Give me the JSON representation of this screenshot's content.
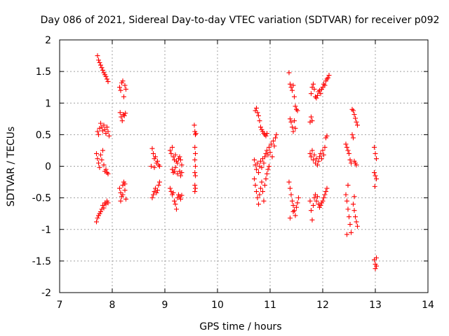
{
  "chart_data": {
    "type": "scatter",
    "title": "Day 086 of 2021, Sidereal Day-to-day VTEC variation (SDTVAR) for receiver p092",
    "xlabel": "GPS time / hours",
    "ylabel": "SDTVAR / TECUs",
    "xlim": [
      7,
      14
    ],
    "ylim": [
      -2,
      2
    ],
    "xticks": [
      "7",
      "8",
      "9",
      "10",
      "11",
      "12",
      "13",
      "14"
    ],
    "yticks": [
      "-2",
      "-1.5",
      "-1",
      "-0.5",
      "0",
      "0.5",
      "1",
      "1.5",
      "2"
    ],
    "grid": true,
    "marker": "+",
    "color": "#ff0000",
    "series": [
      {
        "name": "SDTVAR",
        "points": [
          [
            7.72,
            1.75
          ],
          [
            7.74,
            1.68
          ],
          [
            7.76,
            1.64
          ],
          [
            7.78,
            1.6
          ],
          [
            7.8,
            1.56
          ],
          [
            7.82,
            1.52
          ],
          [
            7.84,
            1.48
          ],
          [
            7.86,
            1.45
          ],
          [
            7.88,
            1.42
          ],
          [
            7.9,
            1.38
          ],
          [
            7.92,
            1.34
          ],
          [
            7.72,
            0.55
          ],
          [
            7.74,
            0.5
          ],
          [
            7.76,
            0.6
          ],
          [
            7.78,
            0.68
          ],
          [
            7.8,
            0.62
          ],
          [
            7.82,
            0.56
          ],
          [
            7.84,
            0.65
          ],
          [
            7.86,
            0.58
          ],
          [
            7.88,
            0.52
          ],
          [
            7.9,
            0.62
          ],
          [
            7.92,
            0.55
          ],
          [
            7.94,
            0.48
          ],
          [
            7.7,
            0.2
          ],
          [
            7.72,
            0.12
          ],
          [
            7.74,
            0.05
          ],
          [
            7.76,
            -0.02
          ],
          [
            7.78,
            0.18
          ],
          [
            7.8,
            0.1
          ],
          [
            7.82,
            0.25
          ],
          [
            7.84,
            0.02
          ],
          [
            7.86,
            -0.08
          ],
          [
            7.88,
            -0.05
          ],
          [
            7.9,
            -0.1
          ],
          [
            7.92,
            -0.12
          ],
          [
            7.7,
            -0.88
          ],
          [
            7.72,
            -0.82
          ],
          [
            7.74,
            -0.78
          ],
          [
            7.76,
            -0.75
          ],
          [
            7.78,
            -0.72
          ],
          [
            7.8,
            -0.68
          ],
          [
            7.82,
            -0.62
          ],
          [
            7.84,
            -0.66
          ],
          [
            7.86,
            -0.58
          ],
          [
            7.88,
            -0.6
          ],
          [
            7.9,
            -0.55
          ],
          [
            7.92,
            -0.58
          ],
          [
            8.14,
            1.25
          ],
          [
            8.16,
            1.2
          ],
          [
            8.18,
            1.32
          ],
          [
            8.2,
            1.35
          ],
          [
            8.22,
            1.1
          ],
          [
            8.24,
            1.28
          ],
          [
            8.26,
            1.22
          ],
          [
            8.15,
            0.85
          ],
          [
            8.17,
            0.78
          ],
          [
            8.19,
            0.72
          ],
          [
            8.21,
            0.82
          ],
          [
            8.23,
            0.8
          ],
          [
            8.25,
            0.84
          ],
          [
            8.14,
            -0.35
          ],
          [
            8.16,
            -0.42
          ],
          [
            8.18,
            -0.48
          ],
          [
            8.2,
            -0.3
          ],
          [
            8.22,
            -0.25
          ],
          [
            8.24,
            -0.38
          ],
          [
            8.26,
            -0.52
          ],
          [
            8.16,
            -0.55
          ],
          [
            8.2,
            -0.45
          ],
          [
            8.24,
            -0.28
          ],
          [
            8.76,
            0.28
          ],
          [
            8.78,
            0.2
          ],
          [
            8.8,
            0.12
          ],
          [
            8.82,
            0.15
          ],
          [
            8.84,
            0.05
          ],
          [
            8.86,
            0.08
          ],
          [
            8.88,
            0.02
          ],
          [
            8.9,
            0.0
          ],
          [
            8.74,
            0.0
          ],
          [
            8.8,
            -0.02
          ],
          [
            8.76,
            -0.5
          ],
          [
            8.78,
            -0.45
          ],
          [
            8.8,
            -0.4
          ],
          [
            8.82,
            -0.35
          ],
          [
            8.84,
            -0.42
          ],
          [
            8.86,
            -0.38
          ],
          [
            8.88,
            -0.3
          ],
          [
            8.9,
            -0.25
          ],
          [
            9.1,
            0.25
          ],
          [
            9.12,
            0.2
          ],
          [
            9.14,
            0.3
          ],
          [
            9.16,
            0.15
          ],
          [
            9.18,
            0.1
          ],
          [
            9.2,
            0.18
          ],
          [
            9.22,
            0.08
          ],
          [
            9.24,
            0.05
          ],
          [
            9.26,
            0.12
          ],
          [
            9.28,
            0.15
          ],
          [
            9.3,
            0.1
          ],
          [
            9.32,
            0.02
          ],
          [
            9.14,
            -0.05
          ],
          [
            9.16,
            -0.1
          ],
          [
            9.18,
            -0.08
          ],
          [
            9.2,
            -0.02
          ],
          [
            9.24,
            -0.12
          ],
          [
            9.28,
            -0.08
          ],
          [
            9.3,
            -0.15
          ],
          [
            9.32,
            -0.1
          ],
          [
            9.1,
            -0.35
          ],
          [
            9.12,
            -0.4
          ],
          [
            9.14,
            -0.45
          ],
          [
            9.16,
            -0.42
          ],
          [
            9.18,
            -0.55
          ],
          [
            9.2,
            -0.6
          ],
          [
            9.22,
            -0.68
          ],
          [
            9.24,
            -0.5
          ],
          [
            9.26,
            -0.45
          ],
          [
            9.28,
            -0.48
          ],
          [
            9.3,
            -0.52
          ],
          [
            9.32,
            -0.46
          ],
          [
            9.56,
            0.65
          ],
          [
            9.57,
            0.55
          ],
          [
            9.58,
            0.5
          ],
          [
            9.59,
            0.52
          ],
          [
            9.57,
            0.3
          ],
          [
            9.58,
            0.2
          ],
          [
            9.57,
            0.1
          ],
          [
            9.58,
            0.0
          ],
          [
            9.57,
            -0.1
          ],
          [
            9.58,
            -0.15
          ],
          [
            9.57,
            -0.3
          ],
          [
            9.58,
            -0.35
          ],
          [
            9.57,
            -0.4
          ],
          [
            10.72,
            0.88
          ],
          [
            10.74,
            0.92
          ],
          [
            10.76,
            0.85
          ],
          [
            10.78,
            0.8
          ],
          [
            10.8,
            0.72
          ],
          [
            10.82,
            0.62
          ],
          [
            10.84,
            0.58
          ],
          [
            10.86,
            0.55
          ],
          [
            10.88,
            0.52
          ],
          [
            10.9,
            0.5
          ],
          [
            10.92,
            0.48
          ],
          [
            10.94,
            0.52
          ],
          [
            10.7,
            0.1
          ],
          [
            10.72,
            0.02
          ],
          [
            10.74,
            -0.05
          ],
          [
            10.76,
            0.05
          ],
          [
            10.78,
            -0.1
          ],
          [
            10.8,
            0.0
          ],
          [
            10.82,
            0.08
          ],
          [
            10.84,
            -0.02
          ],
          [
            10.86,
            0.12
          ],
          [
            10.88,
            0.05
          ],
          [
            10.9,
            0.15
          ],
          [
            10.92,
            0.2
          ],
          [
            10.94,
            0.25
          ],
          [
            10.96,
            0.18
          ],
          [
            10.98,
            0.3
          ],
          [
            11.0,
            0.22
          ],
          [
            11.02,
            0.35
          ],
          [
            11.04,
            0.15
          ],
          [
            11.06,
            0.4
          ],
          [
            11.08,
            0.32
          ],
          [
            11.1,
            0.45
          ],
          [
            11.12,
            0.5
          ],
          [
            10.7,
            -0.2
          ],
          [
            10.72,
            -0.3
          ],
          [
            10.74,
            -0.4
          ],
          [
            10.76,
            -0.5
          ],
          [
            10.78,
            -0.6
          ],
          [
            10.8,
            -0.45
          ],
          [
            10.82,
            -0.35
          ],
          [
            10.84,
            -0.25
          ],
          [
            10.86,
            -0.4
          ],
          [
            10.88,
            -0.55
          ],
          [
            10.9,
            -0.3
          ],
          [
            10.92,
            -0.2
          ],
          [
            10.94,
            -0.12
          ],
          [
            10.96,
            -0.05
          ],
          [
            10.98,
            0.0
          ],
          [
            11.36,
            1.48
          ],
          [
            11.38,
            1.3
          ],
          [
            11.4,
            1.25
          ],
          [
            11.42,
            1.2
          ],
          [
            11.44,
            1.28
          ],
          [
            11.46,
            1.1
          ],
          [
            11.48,
            0.95
          ],
          [
            11.5,
            0.9
          ],
          [
            11.52,
            0.88
          ],
          [
            11.38,
            0.75
          ],
          [
            11.4,
            0.7
          ],
          [
            11.42,
            0.62
          ],
          [
            11.44,
            0.55
          ],
          [
            11.46,
            0.72
          ],
          [
            11.48,
            0.6
          ],
          [
            11.36,
            -0.25
          ],
          [
            11.38,
            -0.35
          ],
          [
            11.4,
            -0.45
          ],
          [
            11.42,
            -0.55
          ],
          [
            11.44,
            -0.62
          ],
          [
            11.46,
            -0.7
          ],
          [
            11.48,
            -0.78
          ],
          [
            11.5,
            -0.65
          ],
          [
            11.52,
            -0.58
          ],
          [
            11.54,
            -0.5
          ],
          [
            11.38,
            -0.82
          ],
          [
            11.44,
            -0.72
          ],
          [
            11.78,
            1.15
          ],
          [
            11.8,
            1.25
          ],
          [
            11.82,
            1.3
          ],
          [
            11.84,
            1.22
          ],
          [
            11.86,
            1.1
          ],
          [
            11.88,
            1.08
          ],
          [
            11.9,
            1.12
          ],
          [
            11.92,
            1.18
          ],
          [
            11.94,
            1.2
          ],
          [
            11.96,
            1.15
          ],
          [
            11.98,
            1.22
          ],
          [
            12.0,
            1.25
          ],
          [
            12.02,
            1.3
          ],
          [
            12.04,
            1.28
          ],
          [
            12.06,
            1.35
          ],
          [
            12.08,
            1.38
          ],
          [
            12.1,
            1.4
          ],
          [
            12.12,
            1.44
          ],
          [
            11.76,
            0.7
          ],
          [
            11.78,
            0.78
          ],
          [
            11.8,
            0.72
          ],
          [
            11.76,
            0.2
          ],
          [
            11.78,
            0.15
          ],
          [
            11.8,
            0.25
          ],
          [
            11.82,
            0.1
          ],
          [
            11.84,
            0.18
          ],
          [
            11.86,
            0.05
          ],
          [
            11.88,
            0.12
          ],
          [
            11.9,
            0.02
          ],
          [
            11.92,
            0.08
          ],
          [
            11.94,
            0.15
          ],
          [
            11.96,
            0.2
          ],
          [
            11.98,
            0.12
          ],
          [
            12.0,
            0.25
          ],
          [
            12.02,
            0.18
          ],
          [
            12.04,
            0.3
          ],
          [
            12.06,
            0.45
          ],
          [
            12.08,
            0.48
          ],
          [
            11.76,
            -0.55
          ],
          [
            11.78,
            -0.7
          ],
          [
            11.8,
            -0.85
          ],
          [
            11.82,
            -0.62
          ],
          [
            11.84,
            -0.5
          ],
          [
            11.86,
            -0.45
          ],
          [
            11.88,
            -0.55
          ],
          [
            11.9,
            -0.48
          ],
          [
            11.92,
            -0.6
          ],
          [
            11.94,
            -0.65
          ],
          [
            11.96,
            -0.62
          ],
          [
            11.98,
            -0.58
          ],
          [
            12.0,
            -0.55
          ],
          [
            12.02,
            -0.5
          ],
          [
            12.04,
            -0.45
          ],
          [
            12.06,
            -0.4
          ],
          [
            12.08,
            -0.35
          ],
          [
            12.44,
            0.35
          ],
          [
            12.46,
            0.3
          ],
          [
            12.48,
            0.25
          ],
          [
            12.5,
            0.2
          ],
          [
            12.52,
            0.1
          ],
          [
            12.54,
            0.05
          ],
          [
            12.56,
            0.5
          ],
          [
            12.58,
            0.45
          ],
          [
            12.6,
            0.08
          ],
          [
            12.62,
            0.05
          ],
          [
            12.64,
            0.02
          ],
          [
            12.58,
            0.88
          ],
          [
            12.6,
            0.82
          ],
          [
            12.62,
            0.76
          ],
          [
            12.64,
            0.7
          ],
          [
            12.66,
            0.65
          ],
          [
            12.56,
            0.9
          ],
          [
            12.44,
            -0.45
          ],
          [
            12.46,
            -0.55
          ],
          [
            12.48,
            -0.68
          ],
          [
            12.5,
            -0.8
          ],
          [
            12.52,
            -0.92
          ],
          [
            12.54,
            -1.05
          ],
          [
            12.46,
            -1.08
          ],
          [
            12.58,
            -0.6
          ],
          [
            12.6,
            -0.7
          ],
          [
            12.62,
            -0.8
          ],
          [
            12.64,
            -0.88
          ],
          [
            12.66,
            -0.95
          ],
          [
            12.6,
            -0.48
          ],
          [
            12.48,
            -0.3
          ],
          [
            12.98,
            0.3
          ],
          [
            13.0,
            0.2
          ],
          [
            13.02,
            0.12
          ],
          [
            12.98,
            -0.1
          ],
          [
            13.0,
            -0.15
          ],
          [
            13.02,
            -0.2
          ],
          [
            12.99,
            -0.32
          ],
          [
            12.98,
            -1.48
          ],
          [
            13.0,
            -1.55
          ],
          [
            13.02,
            -1.45
          ],
          [
            13.0,
            -1.62
          ],
          [
            13.02,
            -1.58
          ]
        ]
      }
    ]
  }
}
